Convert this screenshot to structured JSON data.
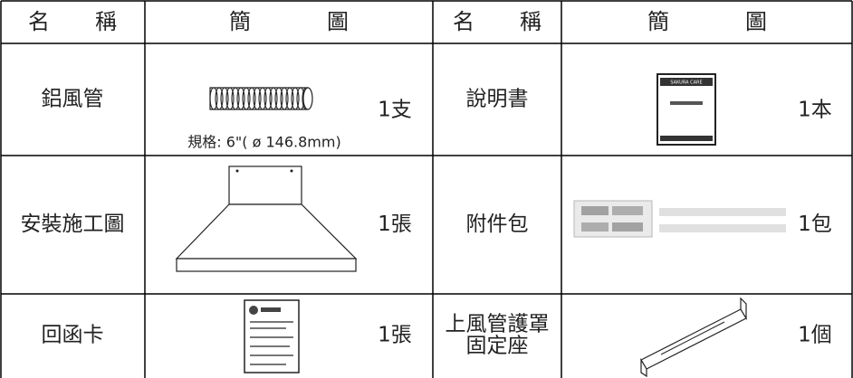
{
  "header": [
    "名稱",
    "簡圖",
    "名稱",
    "簡圖"
  ],
  "rows": [
    {
      "left": {
        "name": [
          "鋁風管"
        ],
        "qty": "1支",
        "note": "規格: 6\"( ø 146.8mm)"
      },
      "right": {
        "name": [
          "說明書"
        ],
        "qty": "1本",
        "label": "SAKURA CARE"
      }
    },
    {
      "left": {
        "name": [
          "安裝施工圖"
        ],
        "qty": "1張"
      },
      "right": {
        "name": [
          "附件包"
        ],
        "qty": "1包"
      }
    },
    {
      "left": {
        "name": [
          "回函卡"
        ],
        "qty": "1張"
      },
      "right": {
        "name": [
          "上風管護罩",
          "固定座"
        ],
        "qty": "1個"
      }
    }
  ]
}
